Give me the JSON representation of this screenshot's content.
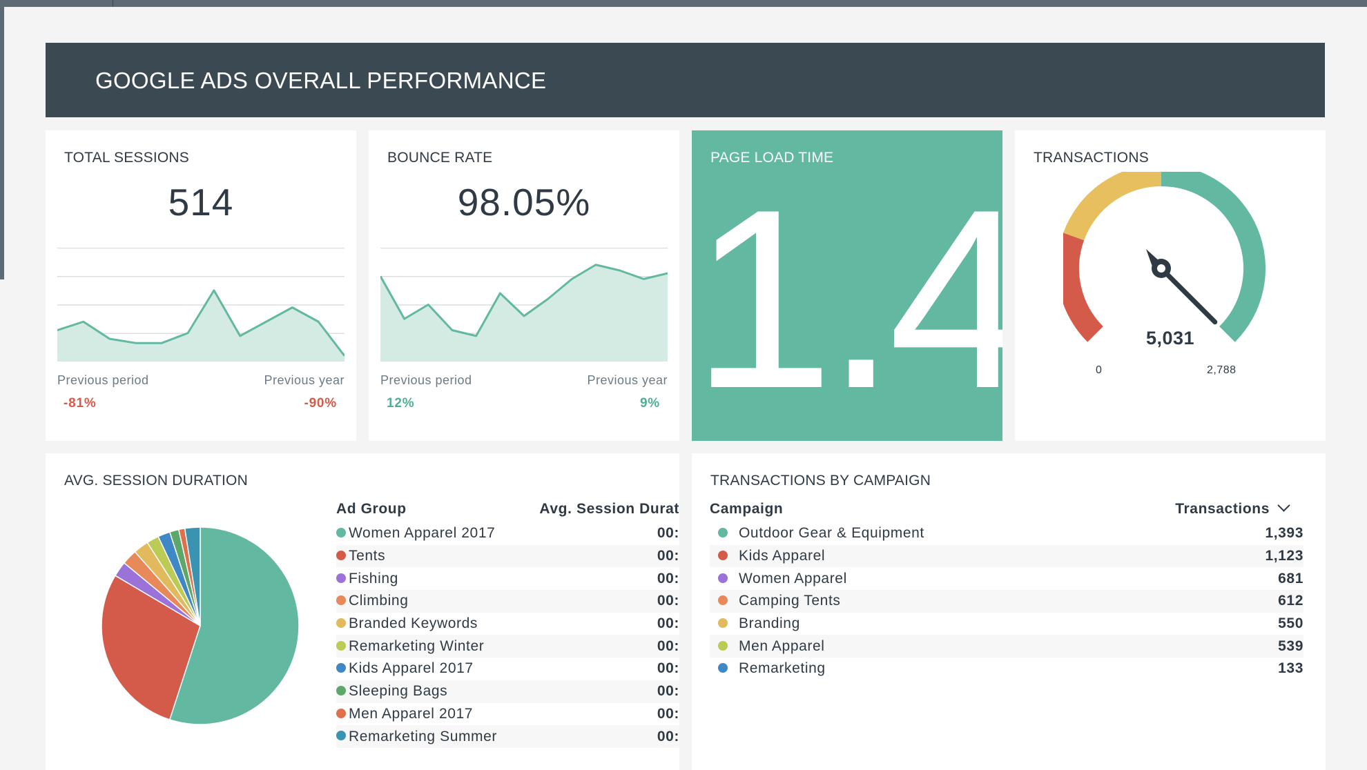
{
  "header": {
    "title": "GOOGLE ADS OVERALL PERFORMANCE"
  },
  "total_sessions": {
    "title": "TOTAL SESSIONS",
    "value": "514",
    "prev_period_label": "Previous period",
    "prev_year_label": "Previous year",
    "prev_period_change": "-81%",
    "prev_year_change": "-90%",
    "sparkline": [
      11,
      14,
      8,
      6.5,
      6.5,
      10,
      25,
      9,
      14,
      19,
      14,
      2
    ]
  },
  "bounce_rate": {
    "title": "BOUNCE RATE",
    "value": "98.05%",
    "prev_period_label": "Previous period",
    "prev_year_label": "Previous year",
    "prev_period_change": "12%",
    "prev_year_change": "9%",
    "sparkline": [
      30,
      15,
      20,
      11,
      9,
      24,
      16,
      22,
      29,
      34,
      32,
      29,
      31
    ]
  },
  "page_load_time": {
    "title": "PAGE LOAD TIME",
    "value": "1.4"
  },
  "transactions": {
    "title": "TRANSACTIONS",
    "value": "5,031",
    "min_label": "0",
    "max_label": "2,788",
    "colors": {
      "low": "#d45a4a",
      "mid": "#e7bf5e",
      "high": "#62b8a0",
      "needle": "#2f3a45"
    }
  },
  "avg_session_duration": {
    "title": "AVG. SESSION DURATION",
    "columns": [
      "Ad Group",
      "Avg. Session Durat"
    ],
    "rows": [
      {
        "name": "Women Apparel 2017",
        "value": "00:",
        "color": "#62b8a0"
      },
      {
        "name": "Tents",
        "value": "00:",
        "color": "#d45a4a"
      },
      {
        "name": "Fishing",
        "value": "00:",
        "color": "#9a72d8"
      },
      {
        "name": "Climbing",
        "value": "00:",
        "color": "#e8895a"
      },
      {
        "name": "Branded Keywords",
        "value": "00:",
        "color": "#e3b95e"
      },
      {
        "name": "Remarketing Winter",
        "value": "00:",
        "color": "#bccb55"
      },
      {
        "name": "Kids Apparel 2017",
        "value": "00:",
        "color": "#3f88c5"
      },
      {
        "name": "Sleeping Bags",
        "value": "00:",
        "color": "#5ea76b"
      },
      {
        "name": "Men Apparel 2017",
        "value": "00:",
        "color": "#e0704a"
      },
      {
        "name": "Remarketing Summer",
        "value": "00:",
        "color": "#3a93b0"
      }
    ],
    "pie": [
      {
        "color": "#62b8a0",
        "share": 0.55
      },
      {
        "color": "#d45a4a",
        "share": 0.285
      },
      {
        "color": "#9a72d8",
        "share": 0.025
      },
      {
        "color": "#e8895a",
        "share": 0.025
      },
      {
        "color": "#e3b95e",
        "share": 0.025
      },
      {
        "color": "#bccb55",
        "share": 0.02
      },
      {
        "color": "#3f88c5",
        "share": 0.02
      },
      {
        "color": "#5ea76b",
        "share": 0.015
      },
      {
        "color": "#e0704a",
        "share": 0.01
      },
      {
        "color": "#3a93b0",
        "share": 0.025
      }
    ]
  },
  "transactions_by_campaign": {
    "title": "TRANSACTIONS BY CAMPAIGN",
    "columns": [
      "Campaign",
      "Transactions"
    ],
    "rows": [
      {
        "name": "Outdoor Gear & Equipment",
        "value": "1,393",
        "color": "#62b8a0"
      },
      {
        "name": "Kids Apparel",
        "value": "1,123",
        "color": "#d45a4a"
      },
      {
        "name": "Women Apparel",
        "value": "681",
        "color": "#9a72d8"
      },
      {
        "name": "Camping Tents",
        "value": "612",
        "color": "#e8895a"
      },
      {
        "name": "Branding",
        "value": "550",
        "color": "#e3b95e"
      },
      {
        "name": "Men Apparel",
        "value": "539",
        "color": "#bccb55"
      },
      {
        "name": "Remarketing",
        "value": "133",
        "color": "#3f88c5"
      }
    ]
  }
}
